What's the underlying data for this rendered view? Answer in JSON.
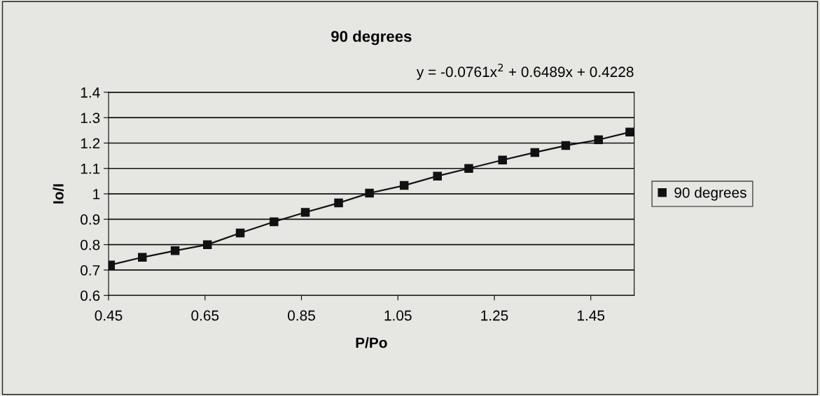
{
  "chart_data": {
    "type": "line",
    "title": "90 degrees",
    "xlabel": "P/Po",
    "ylabel": "Io/I",
    "annotations": [
      "y = -0.0761x$^{2}$ + 0.6489x + 0.4228"
    ],
    "series": [
      {
        "name": "90 degrees",
        "color": "#111111",
        "x": [
          0.454,
          0.52,
          0.588,
          0.655,
          0.723,
          0.793,
          0.858,
          0.927,
          0.991,
          1.063,
          1.132,
          1.197,
          1.267,
          1.334,
          1.398,
          1.466,
          1.531
        ],
        "values": [
          0.72,
          0.75,
          0.776,
          0.8,
          0.846,
          0.89,
          0.927,
          0.964,
          1.003,
          1.033,
          1.07,
          1.1,
          1.133,
          1.163,
          1.19,
          1.213,
          1.243
        ]
      }
    ],
    "xlim": [
      0.45,
      1.54
    ],
    "xticks": [
      0.45,
      0.65,
      0.85,
      1.05,
      1.25,
      1.45
    ],
    "ylim": [
      0.6,
      1.4
    ],
    "yticks": [
      0.6,
      0.7,
      0.8,
      0.9,
      1,
      1.1,
      1.2,
      1.3,
      1.4
    ],
    "grid": "y",
    "legend": "right",
    "marker": "square",
    "line_style": "solid"
  }
}
